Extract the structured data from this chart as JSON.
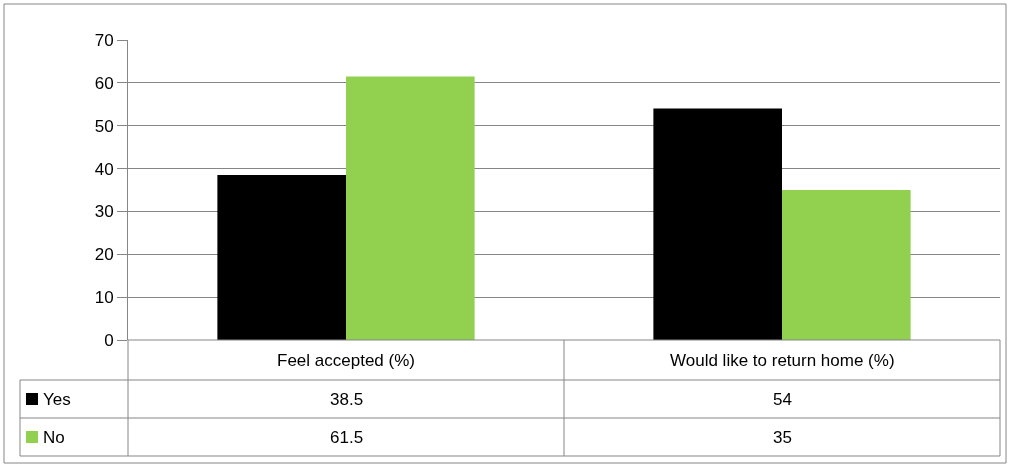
{
  "chart_data": {
    "type": "bar",
    "categories": [
      "Feel accepted (%)",
      "Would like to return home (%)"
    ],
    "series": [
      {
        "name": "Yes",
        "color": "#000000",
        "values": [
          38.5,
          54
        ]
      },
      {
        "name": "No",
        "color": "#92d050",
        "values": [
          61.5,
          35
        ]
      }
    ],
    "ylim": [
      0,
      70
    ],
    "yticks": [
      0,
      10,
      20,
      30,
      40,
      50,
      60,
      70
    ],
    "grid": "y",
    "data_labels": true,
    "legend": "bottom left"
  }
}
